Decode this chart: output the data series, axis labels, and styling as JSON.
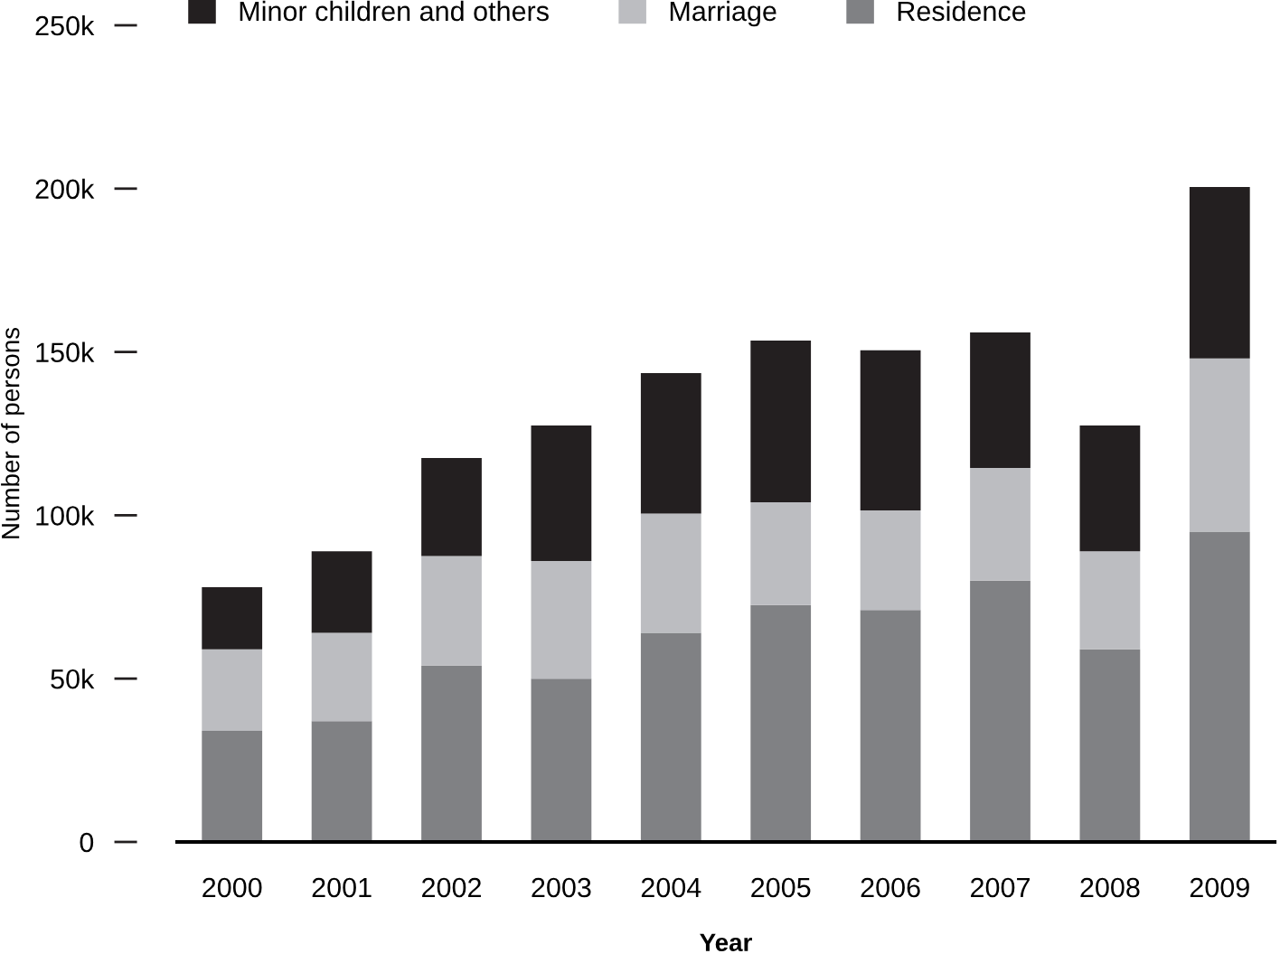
{
  "chart_data": {
    "type": "bar",
    "xlabel": "Year",
    "ylabel": "Number of persons",
    "categories": [
      "2000",
      "2001",
      "2002",
      "2003",
      "2004",
      "2005",
      "2006",
      "2007",
      "2008",
      "2009"
    ],
    "stacked": true,
    "series": [
      {
        "name": "Residence",
        "color": "#808184",
        "values": [
          34000,
          37000,
          54000,
          50000,
          64000,
          72500,
          71000,
          80000,
          59000,
          95000
        ]
      },
      {
        "name": "Marriage",
        "color": "#bcbdc1",
        "values": [
          25000,
          27000,
          33500,
          36000,
          36500,
          31500,
          30500,
          34500,
          30000,
          53000
        ]
      },
      {
        "name": "Minor children and others",
        "color": "#231f20",
        "values": [
          19000,
          25000,
          30000,
          41500,
          43000,
          49500,
          49000,
          41500,
          38500,
          52500
        ]
      }
    ],
    "ylim": [
      0,
      250000
    ],
    "yticks": [
      0,
      {
        "value": 50000,
        "label": "50k"
      },
      {
        "value": 100000,
        "label": "100k"
      },
      {
        "value": 150000,
        "label": "150k"
      },
      {
        "value": 200000,
        "label": "200k"
      },
      {
        "value": 250000,
        "label": "250k"
      }
    ],
    "grid": false,
    "legend": "top"
  }
}
